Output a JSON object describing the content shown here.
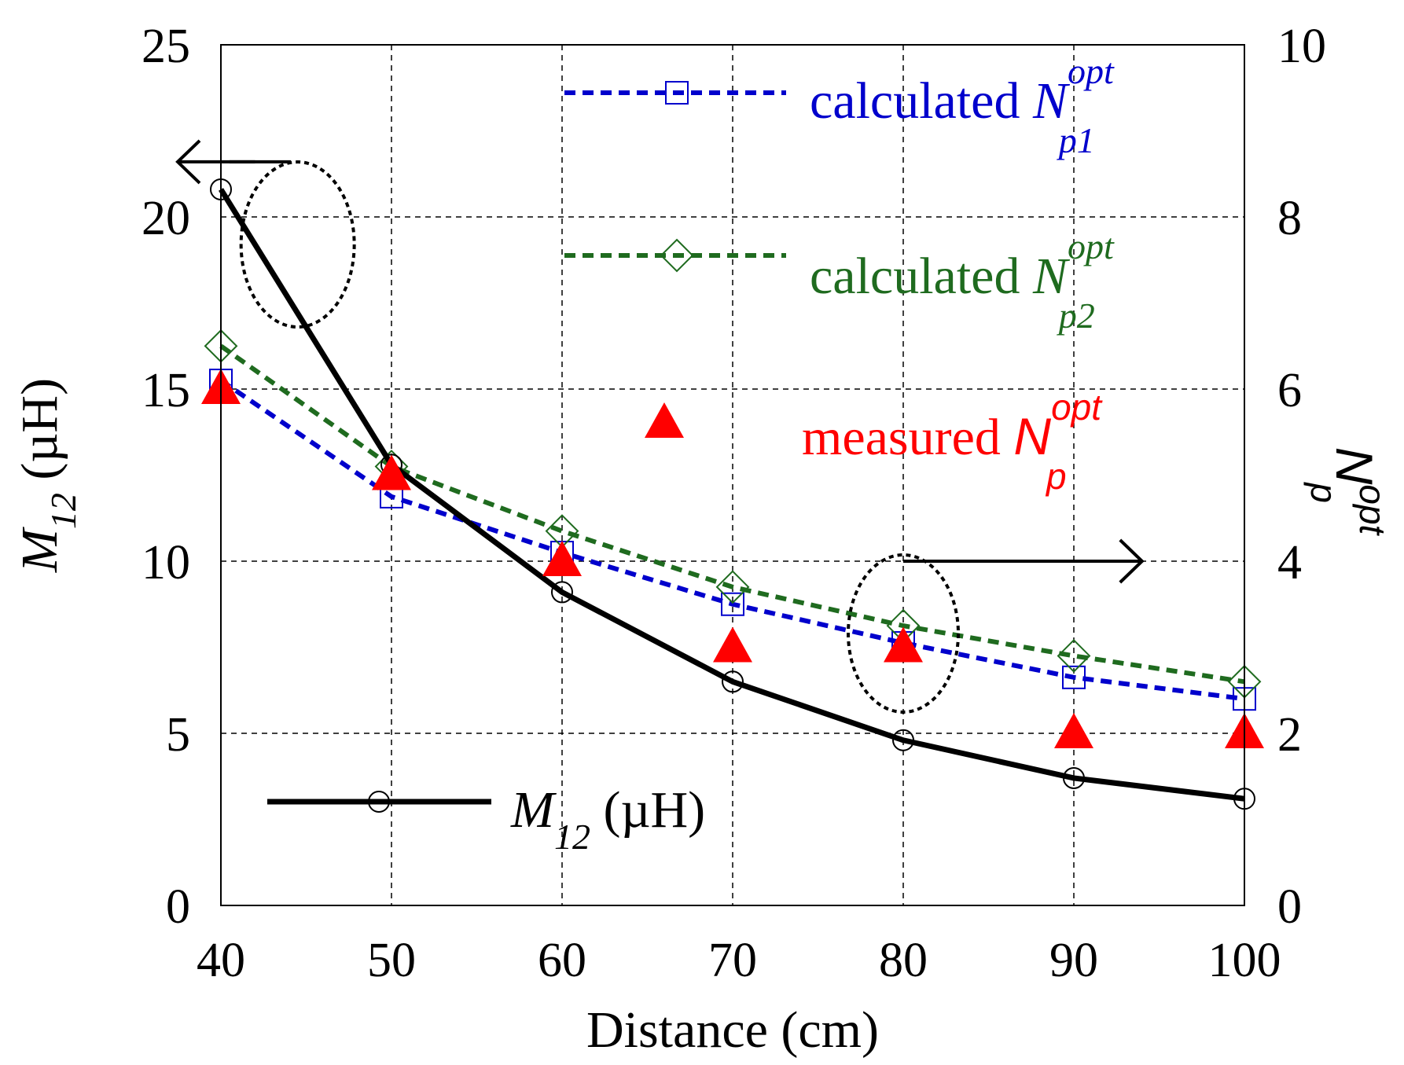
{
  "chart_data": {
    "type": "line",
    "title": "",
    "xlabel": "Distance (cm)",
    "ylabel": {
      "main": "M",
      "sub": "12",
      "unit": " (µH)"
    },
    "y2label": {
      "main": "N",
      "sub": "p",
      "sup": "opt"
    },
    "x": [
      40,
      50,
      60,
      70,
      80,
      90,
      100
    ],
    "xlim": [
      40,
      100
    ],
    "ylim": [
      0,
      25
    ],
    "y2lim": [
      0,
      10
    ],
    "x_ticks": [
      "40",
      "50",
      "60",
      "70",
      "80",
      "90",
      "100"
    ],
    "y_ticks": [
      "0",
      "5",
      "10",
      "15",
      "20",
      "25"
    ],
    "y2_ticks": [
      "0",
      "2",
      "4",
      "6",
      "8",
      "10"
    ],
    "grid": true,
    "series": [
      {
        "name": "M12 (µH)",
        "axis": "left",
        "style": "solid",
        "marker": "circle",
        "color": "#000000",
        "values": [
          20.8,
          12.8,
          9.1,
          6.5,
          4.8,
          3.7,
          3.1
        ]
      },
      {
        "name": "calculated Np1 opt",
        "axis": "right",
        "style": "dashed",
        "marker": "square",
        "color": "#0000cc",
        "values": [
          6.1,
          4.75,
          4.1,
          3.5,
          3.05,
          2.65,
          2.4
        ]
      },
      {
        "name": "calculated Np2 opt",
        "axis": "right",
        "style": "dashed",
        "marker": "diamond",
        "color": "#1f6b1f",
        "values": [
          6.5,
          5.1,
          4.35,
          3.7,
          3.25,
          2.9,
          2.6
        ]
      },
      {
        "name": "measured Np opt",
        "axis": "right",
        "style": "none",
        "marker": "triangle",
        "color": "#ff0000",
        "values": [
          6,
          5,
          4,
          3,
          3,
          2,
          2
        ]
      }
    ],
    "legend": [
      {
        "id": "np1",
        "prefix": "calculated ",
        "main": "N",
        "sub": "p1",
        "sup": "opt",
        "color": "#0000cc",
        "marker": "square"
      },
      {
        "id": "np2",
        "prefix": "calculated ",
        "main": "N",
        "sub": "p2",
        "sup": "opt",
        "color": "#1f6b1f",
        "marker": "diamond"
      },
      {
        "id": "meas",
        "prefix": "measured ",
        "main": "N",
        "sub": "p",
        "sup": "opt",
        "color": "#ff0000",
        "marker": "triangle"
      },
      {
        "id": "m12",
        "prefix": "",
        "main": "M",
        "sub": "12",
        "sup": "",
        "unit": " (µH)",
        "color": "#000000",
        "marker": "circle"
      }
    ],
    "annotations": [
      {
        "text": "",
        "kind": "ellipse with arrow pointing left",
        "meaning": "M12 curve uses left axis"
      },
      {
        "text": "",
        "kind": "ellipse with arrow pointing right",
        "meaning": "Np curves use right axis"
      }
    ]
  },
  "colors": {
    "grid": "#000000",
    "background": "#ffffff"
  }
}
